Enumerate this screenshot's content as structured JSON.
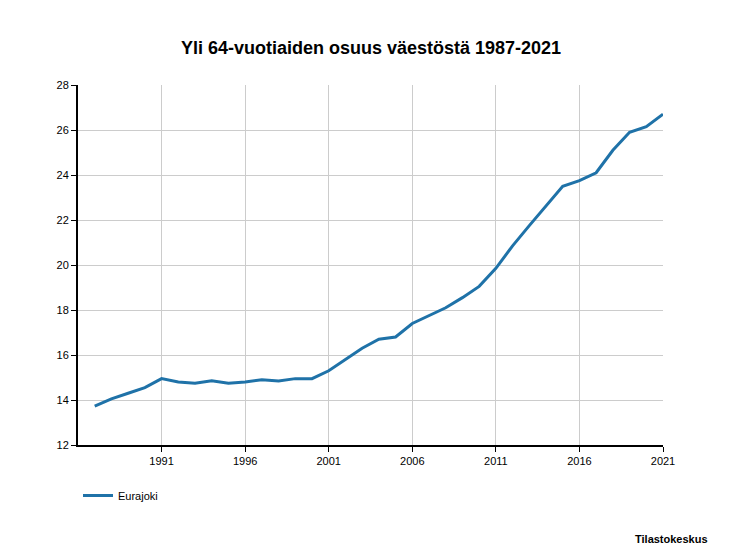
{
  "chart_data": {
    "type": "line",
    "title": "Yli 64-vuotiaiden osuus väestöstä 1987-2021",
    "source": "Tilastokeskus",
    "x": [
      1987,
      1988,
      1989,
      1990,
      1991,
      1992,
      1993,
      1994,
      1995,
      1996,
      1997,
      1998,
      1999,
      2000,
      2001,
      2002,
      2003,
      2004,
      2005,
      2006,
      2007,
      2008,
      2009,
      2010,
      2011,
      2012,
      2013,
      2014,
      2015,
      2016,
      2017,
      2018,
      2019,
      2020,
      2021
    ],
    "series": [
      {
        "name": "Eurajoki",
        "color": "#1f72a8",
        "values": [
          13.73,
          14.05,
          14.3,
          14.55,
          14.95,
          14.8,
          14.75,
          14.85,
          14.75,
          14.8,
          14.9,
          14.85,
          14.95,
          14.95,
          15.3,
          15.8,
          16.3,
          16.7,
          16.8,
          17.4,
          17.75,
          18.1,
          18.55,
          19.05,
          19.85,
          20.85,
          21.75,
          22.6,
          23.5,
          23.75,
          24.1,
          25.1,
          25.9,
          26.15,
          26.7
        ]
      }
    ],
    "xlim": [
      1986,
      2021
    ],
    "xticks": [
      1991,
      1996,
      2001,
      2006,
      2011,
      2016,
      2021
    ],
    "ylim": [
      12,
      28
    ],
    "yticks": [
      12,
      14,
      16,
      18,
      20,
      22,
      24,
      26,
      28
    ],
    "grid": true,
    "legend": "bottom left"
  }
}
